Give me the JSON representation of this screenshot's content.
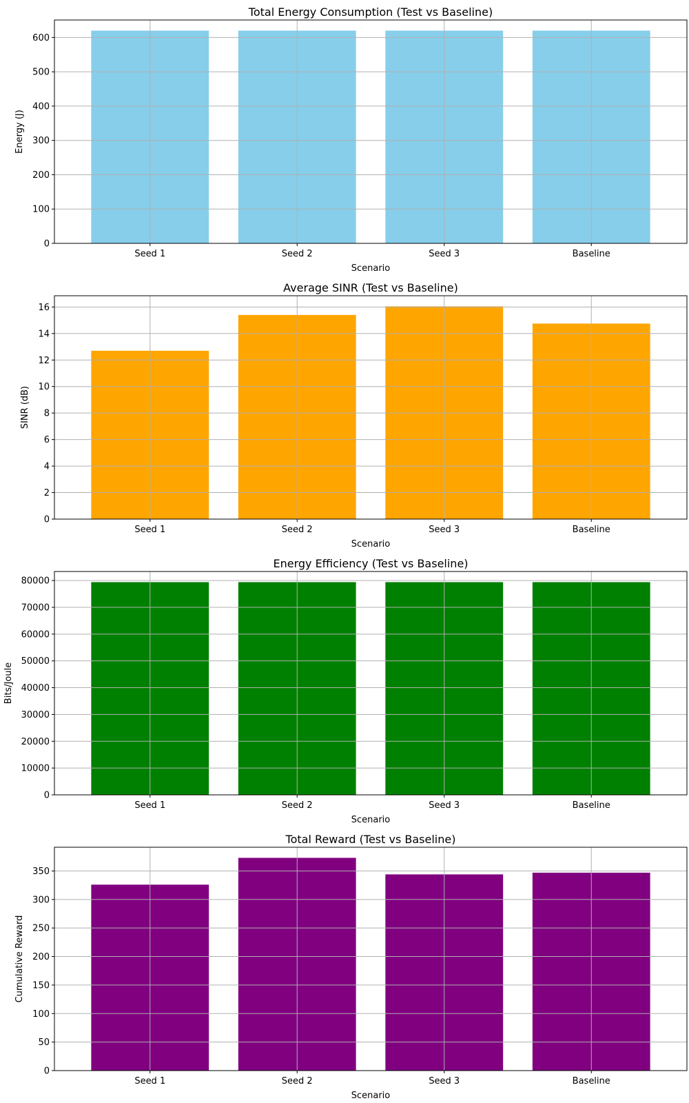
{
  "chart_data": [
    {
      "type": "bar",
      "title": "Total Energy Consumption (Test vs Baseline)",
      "xlabel": "Scenario",
      "ylabel": "Energy (J)",
      "categories": [
        "Seed 1",
        "Seed 2",
        "Seed 3",
        "Baseline"
      ],
      "values": [
        620,
        620,
        620,
        620
      ],
      "yticks": [
        0,
        100,
        200,
        300,
        400,
        500,
        600
      ],
      "ylim": [
        0,
        651
      ],
      "color": "#87ceeb",
      "grid": true
    },
    {
      "type": "bar",
      "title": "Average SINR (Test vs Baseline)",
      "xlabel": "Scenario",
      "ylabel": "SINR (dB)",
      "categories": [
        "Seed 1",
        "Seed 2",
        "Seed 3",
        "Baseline"
      ],
      "values": [
        12.7,
        15.4,
        16.05,
        14.75
      ],
      "yticks": [
        0,
        2,
        4,
        6,
        8,
        10,
        12,
        14,
        16
      ],
      "ylim": [
        0,
        16.85
      ],
      "color": "#ffa500",
      "grid": true
    },
    {
      "type": "bar",
      "title": "Energy Efficiency (Test vs Baseline)",
      "xlabel": "Scenario",
      "ylabel": "Bits/Joule",
      "categories": [
        "Seed 1",
        "Seed 2",
        "Seed 3",
        "Baseline"
      ],
      "values": [
        79400,
        79400,
        79400,
        79400
      ],
      "yticks": [
        0,
        10000,
        20000,
        30000,
        40000,
        50000,
        60000,
        70000,
        80000
      ],
      "ylim": [
        0,
        83370
      ],
      "color": "#008000",
      "grid": true
    },
    {
      "type": "bar",
      "title": "Total Reward (Test vs Baseline)",
      "xlabel": "Scenario",
      "ylabel": "Cumulative Reward",
      "categories": [
        "Seed 1",
        "Seed 2",
        "Seed 3",
        "Baseline"
      ],
      "values": [
        326,
        373,
        344,
        347
      ],
      "yticks": [
        0,
        50,
        100,
        150,
        200,
        250,
        300,
        350
      ],
      "ylim": [
        0,
        391.6
      ],
      "color": "#800080",
      "grid": true
    }
  ]
}
